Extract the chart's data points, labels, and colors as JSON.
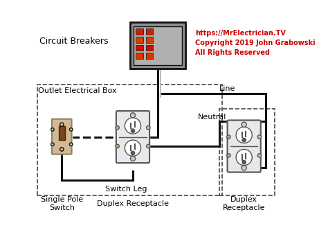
{
  "title": "",
  "background_color": "#ffffff",
  "copyright_text": "https://MrElectrician.TV\nCopyright 2019 John Grabowski\nAll Rights Reserved",
  "copyright_color": "#cc0000",
  "copyright_fontsize": 8,
  "label_circuit_breakers": "Circuit Breakers",
  "label_outlet_box": "Outlet Electrical Box",
  "label_single_pole": "Single Pole\nSwitch",
  "label_switch_leg": "Switch Leg",
  "label_duplex_bottom": "Duplex Receptacle",
  "label_line": "Line",
  "label_neutral": "Neutral",
  "label_duplex_right": "Duplex\nReceptacle",
  "label_fontsize": 8,
  "panel_color": "#888888",
  "panel_face": "#999999",
  "wire_black": "#111111",
  "wire_white": "#dddddd",
  "outlet_body": "#f0f0f0",
  "outlet_border": "#555555",
  "switch_body": "#c8a870",
  "switch_dark": "#7a4a20",
  "dashed_box_color": "#444444"
}
